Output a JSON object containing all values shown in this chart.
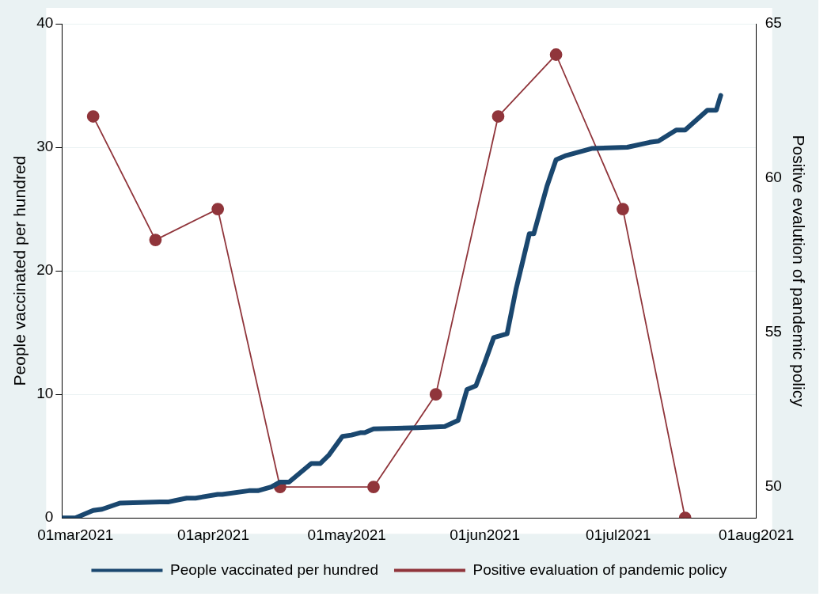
{
  "chart_data": {
    "type": "line",
    "ylabel": "People vaccinated per hundred",
    "y2label": "Positive evalution of pandemic policy",
    "xlim": [
      "2021-02-26",
      "2021-08-01"
    ],
    "xticks": [
      {
        "value": "2021-03-01",
        "label": "01mar2021"
      },
      {
        "value": "2021-04-01",
        "label": "01apr2021"
      },
      {
        "value": "2021-05-01",
        "label": "01may2021"
      },
      {
        "value": "2021-06-01",
        "label": "01jun2021"
      },
      {
        "value": "2021-07-01",
        "label": "01jul2021"
      },
      {
        "value": "2021-08-01",
        "label": "01aug2021"
      }
    ],
    "ylim": [
      0,
      40
    ],
    "yticks": [
      0,
      10,
      20,
      30,
      40
    ],
    "y2lim": [
      49,
      65
    ],
    "y2ticks": [
      50,
      55,
      60,
      65
    ],
    "grid": "y",
    "legend": "bottom",
    "series": [
      {
        "name": "People vaccinated per hundred",
        "color": "#1a476f",
        "marker": "none",
        "x": [
          "2021-02-26",
          "2021-03-01",
          "2021-03-05",
          "2021-03-07",
          "2021-03-11",
          "2021-03-20",
          "2021-03-22",
          "2021-03-26",
          "2021-03-28",
          "2021-04-02",
          "2021-04-03",
          "2021-04-09",
          "2021-04-11",
          "2021-04-14",
          "2021-04-16",
          "2021-04-18",
          "2021-04-23",
          "2021-04-25",
          "2021-04-27",
          "2021-04-30",
          "2021-05-02",
          "2021-05-04",
          "2021-05-05",
          "2021-05-07",
          "2021-05-17",
          "2021-05-23",
          "2021-05-26",
          "2021-05-28",
          "2021-05-30",
          "2021-06-01",
          "2021-06-03",
          "2021-06-06",
          "2021-06-08",
          "2021-06-11",
          "2021-06-12",
          "2021-06-15",
          "2021-06-17",
          "2021-06-19",
          "2021-06-25",
          "2021-07-03",
          "2021-07-08",
          "2021-07-10",
          "2021-07-14",
          "2021-07-16",
          "2021-07-21",
          "2021-07-23",
          "2021-07-24"
        ],
        "values": [
          0,
          0,
          0.6,
          0.7,
          1.2,
          1.3,
          1.3,
          1.6,
          1.6,
          1.9,
          1.9,
          2.2,
          2.2,
          2.5,
          2.9,
          2.9,
          4.4,
          4.4,
          5.1,
          6.6,
          6.7,
          6.9,
          6.9,
          7.2,
          7.3,
          7.4,
          7.9,
          10.4,
          10.7,
          12.6,
          14.6,
          14.9,
          18.5,
          23,
          23,
          26.9,
          29,
          29.3,
          29.9,
          30,
          30.4,
          30.5,
          31.4,
          31.4,
          33,
          33,
          34.2
        ]
      },
      {
        "name": "Positive evaluation of pandemic policy",
        "color": "#90353b",
        "axis": "y2",
        "marker": "circle",
        "x": [
          "2021-03-05",
          "2021-03-19",
          "2021-04-02",
          "2021-04-16",
          "2021-05-07",
          "2021-05-21",
          "2021-06-04",
          "2021-06-17",
          "2021-07-02",
          "2021-07-16"
        ],
        "values": [
          62,
          58,
          59,
          50,
          50,
          53,
          62,
          64,
          59,
          49
        ]
      }
    ]
  }
}
